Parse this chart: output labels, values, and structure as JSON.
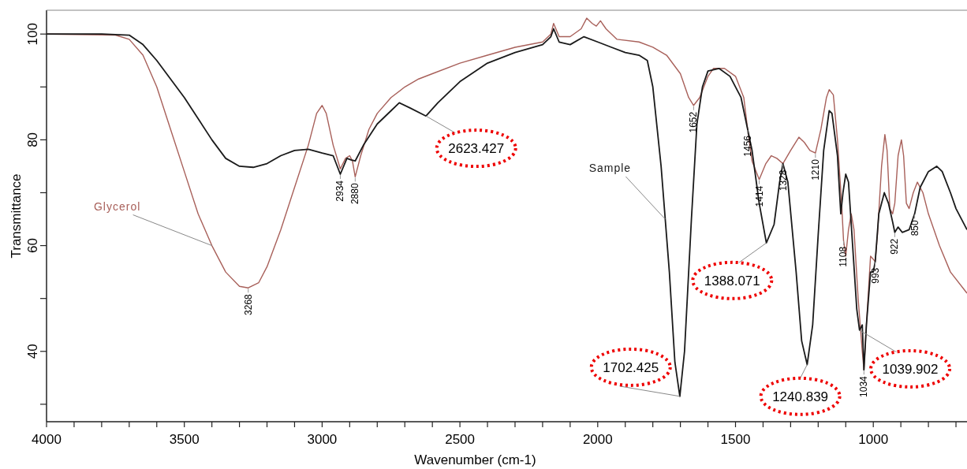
{
  "chart_data": {
    "type": "line",
    "xlabel": "Wavenumber (cm-1)",
    "ylabel": "Transmittance",
    "xlim": [
      4000,
      660
    ],
    "ylim": [
      26.7,
      104.5
    ],
    "xticks": [
      4000,
      {
        "value": 3900,
        "label": null
      },
      {
        "value": 3800,
        "label": null
      },
      {
        "value": 3700,
        "label": null
      },
      {
        "value": 3600,
        "label": null
      },
      3500,
      {
        "value": 3400,
        "label": null
      },
      {
        "value": 3300,
        "label": null
      },
      {
        "value": 3200,
        "label": null
      },
      {
        "value": 3100,
        "label": null
      },
      3000,
      {
        "value": 2900,
        "label": null
      },
      {
        "value": 2800,
        "label": null
      },
      {
        "value": 2700,
        "label": null
      },
      {
        "value": 2600,
        "label": null
      },
      2500,
      {
        "value": 2400,
        "label": null
      },
      {
        "value": 2300,
        "label": null
      },
      {
        "value": 2200,
        "label": null
      },
      {
        "value": 2100,
        "label": null
      },
      2000,
      {
        "value": 1900,
        "label": null
      },
      {
        "value": 1800,
        "label": null
      },
      {
        "value": 1700,
        "label": null
      },
      {
        "value": 1600,
        "label": null
      },
      1500,
      {
        "value": 1400,
        "label": null
      },
      {
        "value": 1300,
        "label": null
      },
      {
        "value": 1200,
        "label": null
      },
      {
        "value": 1100,
        "label": null
      },
      1000,
      {
        "value": 900,
        "label": null
      },
      {
        "value": 800,
        "label": null
      },
      {
        "value": 700,
        "label": null
      }
    ],
    "yticks": [
      {
        "value": 30,
        "label": null
      },
      40,
      {
        "value": 50,
        "label": null
      },
      60,
      {
        "value": 70,
        "label": null
      },
      80,
      {
        "value": 90,
        "label": null
      },
      100
    ],
    "grid": false,
    "marker": "none",
    "line_style": "solid",
    "series": [
      {
        "name": "Glycerol",
        "color": "#a8605a",
        "x": [
          4000,
          3750,
          3700,
          3650,
          3600,
          3550,
          3500,
          3450,
          3400,
          3350,
          3300,
          3268,
          3230,
          3200,
          3150,
          3100,
          3050,
          3020,
          3000,
          2985,
          2960,
          2934,
          2915,
          2900,
          2890,
          2880,
          2860,
          2830,
          2800,
          2750,
          2700,
          2650,
          2600,
          2500,
          2400,
          2300,
          2200,
          2170,
          2160,
          2140,
          2100,
          2060,
          2040,
          2020,
          2005,
          1990,
          1970,
          1930,
          1850,
          1800,
          1750,
          1700,
          1670,
          1652,
          1630,
          1600,
          1580,
          1540,
          1500,
          1470,
          1456,
          1440,
          1414,
          1390,
          1370,
          1350,
          1328,
          1300,
          1270,
          1250,
          1230,
          1210,
          1190,
          1170,
          1160,
          1145,
          1130,
          1115,
          1108,
          1100,
          1090,
          1080,
          1070,
          1055,
          1040,
          1034,
          1025,
          1010,
          993,
          985,
          970,
          958,
          950,
          940,
          930,
          922,
          910,
          898,
          890,
          880,
          870,
          855,
          840,
          820,
          800,
          760,
          720,
          660
        ],
        "values": [
          100,
          99.8,
          99,
          96,
          90,
          82,
          74,
          66,
          60,
          55,
          52.3,
          52,
          53,
          56,
          63,
          71,
          79,
          85,
          86.5,
          85,
          79,
          74.5,
          76.5,
          77,
          76,
          73,
          77,
          82,
          85,
          88,
          90,
          91.5,
          92.5,
          94.5,
          96,
          97.5,
          98.5,
          100,
          102,
          99.5,
          99.5,
          101,
          103,
          102,
          101.5,
          102.5,
          101,
          99,
          98.5,
          97.5,
          96,
          92.5,
          88,
          86.5,
          88,
          92,
          93.5,
          93.5,
          92,
          88,
          82,
          76,
          72.5,
          75.5,
          77,
          76.5,
          75.5,
          78,
          80.5,
          79.5,
          78,
          77.5,
          82,
          88,
          89.5,
          88.5,
          80,
          68,
          61,
          58,
          63,
          66,
          63,
          50,
          40,
          36.5,
          45,
          58,
          57,
          62,
          75,
          81,
          78,
          67,
          66,
          68,
          77,
          80,
          77,
          68,
          67,
          70,
          72,
          70,
          66,
          60,
          55,
          51
        ]
      },
      {
        "name": "Sample",
        "color": "#1a1a1a",
        "x": [
          4000,
          3800,
          3700,
          3650,
          3600,
          3500,
          3450,
          3400,
          3350,
          3300,
          3250,
          3200,
          3150,
          3100,
          3050,
          3000,
          2960,
          2934,
          2910,
          2895,
          2880,
          2850,
          2800,
          2750,
          2720,
          2680,
          2623,
          2580,
          2500,
          2400,
          2300,
          2200,
          2170,
          2160,
          2140,
          2100,
          2050,
          2000,
          1950,
          1900,
          1850,
          1820,
          1800,
          1770,
          1740,
          1720,
          1702,
          1685,
          1660,
          1640,
          1620,
          1600,
          1560,
          1520,
          1480,
          1440,
          1414,
          1388,
          1360,
          1340,
          1328,
          1310,
          1280,
          1260,
          1240,
          1220,
          1200,
          1180,
          1160,
          1150,
          1130,
          1118,
          1110,
          1100,
          1090,
          1075,
          1060,
          1050,
          1040,
          1034,
          1025,
          1010,
          1000,
          993,
          980,
          960,
          945,
          930,
          922,
          910,
          895,
          870,
          850,
          830,
          800,
          770,
          750,
          720,
          700,
          660
        ],
        "values": [
          100,
          100,
          99.8,
          98,
          95,
          88,
          84,
          80,
          76.5,
          75,
          74.8,
          75.5,
          77,
          78,
          78.2,
          77.5,
          77,
          73.5,
          76.5,
          76.2,
          76,
          79,
          83,
          85.5,
          87,
          86,
          84.5,
          87,
          91,
          94.5,
          96.5,
          98,
          99.5,
          101,
          98.5,
          98,
          99.5,
          98.5,
          97.5,
          96.5,
          96,
          95,
          90,
          75,
          55,
          38,
          31.5,
          40,
          65,
          83,
          90,
          93,
          93.5,
          92,
          88,
          78,
          68,
          60.5,
          64,
          72,
          75.5,
          72,
          55,
          42,
          37.5,
          45,
          62,
          78,
          85.5,
          85,
          77,
          66,
          70,
          73.5,
          72,
          60,
          48,
          44,
          45,
          36.5,
          45,
          55,
          55,
          57,
          66,
          70,
          68,
          64.5,
          62.5,
          63.5,
          62.5,
          63,
          66,
          71,
          74,
          75,
          74,
          70,
          67,
          63
        ]
      }
    ],
    "annotations": [
      {
        "text": "3268",
        "x": 3268,
        "y": 52
      },
      {
        "text": "2934",
        "x": 2934,
        "y": 73.5
      },
      {
        "text": "2880",
        "x": 2880,
        "y": 73
      },
      {
        "text": "1652",
        "x": 1652,
        "y": 86.5
      },
      {
        "text": "1456",
        "x": 1456,
        "y": 82
      },
      {
        "text": "1414",
        "x": 1414,
        "y": 72.5
      },
      {
        "text": "1328",
        "x": 1328,
        "y": 75.5
      },
      {
        "text": "1210",
        "x": 1210,
        "y": 77.5
      },
      {
        "text": "1108",
        "x": 1108,
        "y": 61
      },
      {
        "text": "993",
        "x": 993,
        "y": 57
      },
      {
        "text": "1034",
        "x": 1034,
        "y": 36.5
      },
      {
        "text": "922",
        "x": 922,
        "y": 62.5
      },
      {
        "text": "850",
        "x": 850,
        "y": 66
      },
      {
        "text": "2623.427",
        "x": 2623,
        "y": 84.5
      },
      {
        "text": "1388.071",
        "x": 1388,
        "y": 60.5
      },
      {
        "text": "1702.425",
        "x": 1702,
        "y": 31.5
      },
      {
        "text": "1240.839",
        "x": 1240,
        "y": 37.5
      },
      {
        "text": "1039.902",
        "x": 1050,
        "y": 44
      }
    ]
  }
}
